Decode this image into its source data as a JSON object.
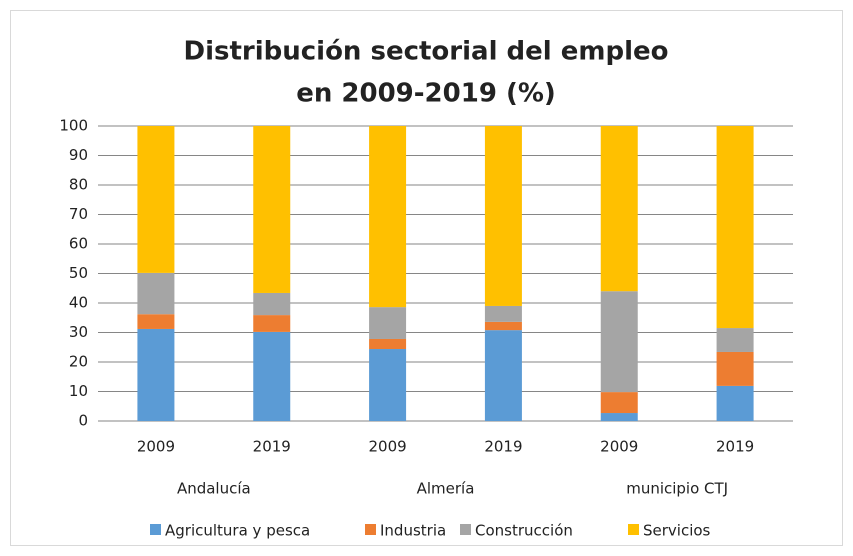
{
  "chart_data": {
    "type": "stacked_bar",
    "title": [
      "Distribución sectorial del empleo",
      "en 2009-2019 (%)"
    ],
    "categories": [
      "2009",
      "2019",
      "2009",
      "2019",
      "2009",
      "2019"
    ],
    "groups": [
      "Andalucía",
      "Almería",
      "municipio CTJ"
    ],
    "series": [
      {
        "name": "Agricultura y pesca",
        "color": "#5b9bd5",
        "values": [
          31.2,
          30.2,
          24.4,
          30.8,
          2.7,
          11.9
        ]
      },
      {
        "name": "Industria",
        "color": "#ed7d31",
        "values": [
          5.0,
          5.7,
          3.4,
          2.8,
          7.1,
          11.5
        ]
      },
      {
        "name": "Construcción",
        "color": "#a5a5a5",
        "values": [
          14.0,
          7.5,
          10.8,
          5.4,
          34.2,
          8.1
        ]
      },
      {
        "name": "Servicios",
        "color": "#ffc000",
        "values": [
          49.8,
          56.6,
          61.4,
          61.0,
          56.0,
          68.5
        ]
      }
    ],
    "ylim": [
      0,
      100
    ],
    "yticks": [
      0,
      10,
      20,
      30,
      40,
      50,
      60,
      70,
      80,
      90,
      100
    ],
    "grid": true,
    "legend": "bottom"
  }
}
